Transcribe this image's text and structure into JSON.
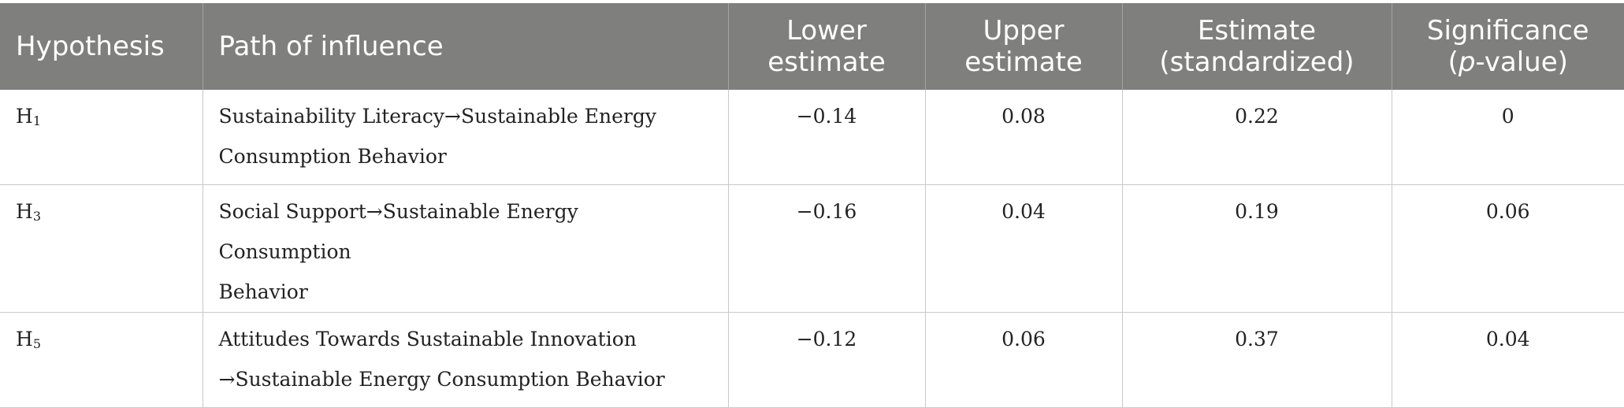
{
  "header": {
    "hypothesis": "Hypothesis",
    "path": "Path of influence",
    "lower_1": "Lower",
    "lower_2": "estimate",
    "upper_1": "Upper",
    "upper_2": "estimate",
    "estimate_1": "Estimate",
    "estimate_2": "(standardized)",
    "sig_1": "Significance",
    "sig_2_open": "(",
    "sig_2_p": "p",
    "sig_2_rest": "-value)"
  },
  "rows": [
    {
      "hyp_letter": "H",
      "hyp_sub": "1",
      "path_line1": "Sustainability Literacy→Sustainable Energy",
      "path_line2": "Consumption Behavior",
      "lower": "−0.14",
      "upper": "0.08",
      "estimate": "0.22",
      "significance": "0"
    },
    {
      "hyp_letter": "H",
      "hyp_sub": "3",
      "path_line1": "Social Support→Sustainable Energy Consumption",
      "path_line2": "Behavior",
      "lower": "−0.16",
      "upper": "0.04",
      "estimate": "0.19",
      "significance": "0.06"
    },
    {
      "hyp_letter": "H",
      "hyp_sub": "5",
      "path_line1": "Attitudes Towards Sustainable Innovation",
      "path_line2": "→Sustainable Energy Consumption Behavior",
      "lower": "−0.12",
      "upper": "0.06",
      "estimate": "0.37",
      "significance": "0.04"
    }
  ]
}
